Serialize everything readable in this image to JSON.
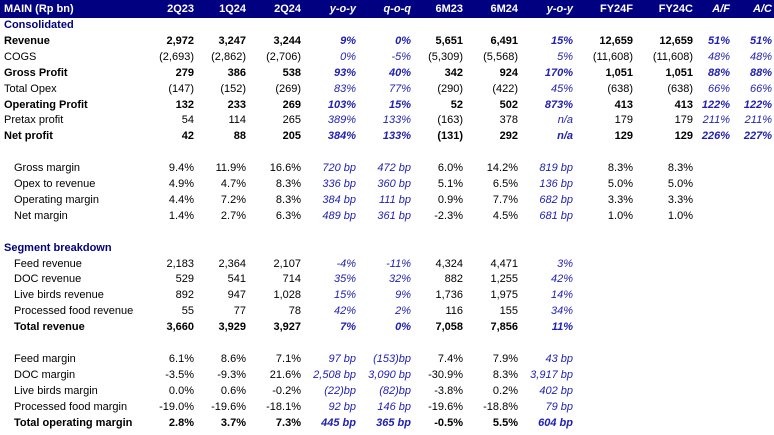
{
  "header": {
    "title": "MAIN (Rp bn)",
    "columns": [
      "2Q23",
      "1Q24",
      "2Q24",
      "y-o-y",
      "q-o-q",
      "6M23",
      "6M24",
      "y-o-y",
      "FY24F",
      "FY24C",
      "A/F",
      "A/C"
    ]
  },
  "consolidated": {
    "title": "Consolidated",
    "rows": [
      {
        "label": "Revenue",
        "bold": true,
        "values": [
          "2,972",
          "3,247",
          "3,244",
          "9%",
          "0%",
          "5,651",
          "6,491",
          "15%",
          "12,659",
          "12,659",
          "51%",
          "51%"
        ]
      },
      {
        "label": "COGS",
        "bold": false,
        "values": [
          "(2,693)",
          "(2,862)",
          "(2,706)",
          "0%",
          "-5%",
          "(5,309)",
          "(5,568)",
          "5%",
          "(11,608)",
          "(11,608)",
          "48%",
          "48%"
        ]
      },
      {
        "label": "Gross Profit",
        "bold": true,
        "values": [
          "279",
          "386",
          "538",
          "93%",
          "40%",
          "342",
          "924",
          "170%",
          "1,051",
          "1,051",
          "88%",
          "88%"
        ]
      },
      {
        "label": "Total Opex",
        "bold": false,
        "values": [
          "(147)",
          "(152)",
          "(269)",
          "83%",
          "77%",
          "(290)",
          "(422)",
          "45%",
          "(638)",
          "(638)",
          "66%",
          "66%"
        ]
      },
      {
        "label": "Operating Profit",
        "bold": true,
        "values": [
          "132",
          "233",
          "269",
          "103%",
          "15%",
          "52",
          "502",
          "873%",
          "413",
          "413",
          "122%",
          "122%"
        ]
      },
      {
        "label": "Pretax profit",
        "bold": false,
        "values": [
          "54",
          "114",
          "265",
          "389%",
          "133%",
          "(163)",
          "378",
          "n/a",
          "179",
          "179",
          "211%",
          "211%"
        ]
      },
      {
        "label": "Net profit",
        "bold": true,
        "values": [
          "42",
          "88",
          "205",
          "384%",
          "133%",
          "(131)",
          "292",
          "n/a",
          "129",
          "129",
          "226%",
          "227%"
        ]
      }
    ]
  },
  "margins": {
    "rows": [
      {
        "label": "Gross margin",
        "values": [
          "9.4%",
          "11.9%",
          "16.6%",
          "720 bp",
          "472 bp",
          "6.0%",
          "14.2%",
          "819 bp",
          "8.3%",
          "8.3%",
          "",
          ""
        ]
      },
      {
        "label": "Opex to revenue",
        "values": [
          "4.9%",
          "4.7%",
          "8.3%",
          "336 bp",
          "360 bp",
          "5.1%",
          "6.5%",
          "136 bp",
          "5.0%",
          "5.0%",
          "",
          ""
        ]
      },
      {
        "label": "Operating margin",
        "values": [
          "4.4%",
          "7.2%",
          "8.3%",
          "384 bp",
          "111 bp",
          "0.9%",
          "7.7%",
          "682 bp",
          "3.3%",
          "3.3%",
          "",
          ""
        ]
      },
      {
        "label": "Net margin",
        "values": [
          "1.4%",
          "2.7%",
          "6.3%",
          "489 bp",
          "361 bp",
          "-2.3%",
          "4.5%",
          "681 bp",
          "1.0%",
          "1.0%",
          "",
          ""
        ]
      }
    ]
  },
  "segment": {
    "title": "Segment breakdown",
    "rows": [
      {
        "label": "Feed revenue",
        "bold": false,
        "values": [
          "2,183",
          "2,364",
          "2,107",
          "-4%",
          "-11%",
          "4,324",
          "4,471",
          "3%",
          "",
          "",
          "",
          ""
        ]
      },
      {
        "label": "DOC revenue",
        "bold": false,
        "values": [
          "529",
          "541",
          "714",
          "35%",
          "32%",
          "882",
          "1,255",
          "42%",
          "",
          "",
          "",
          ""
        ]
      },
      {
        "label": "Live birds revenue",
        "bold": false,
        "values": [
          "892",
          "947",
          "1,028",
          "15%",
          "9%",
          "1,736",
          "1,975",
          "14%",
          "",
          "",
          "",
          ""
        ]
      },
      {
        "label": "Processed food revenue",
        "bold": false,
        "values": [
          "55",
          "77",
          "78",
          "42%",
          "2%",
          "116",
          "155",
          "34%",
          "",
          "",
          "",
          ""
        ]
      },
      {
        "label": "Total revenue",
        "bold": true,
        "values": [
          "3,660",
          "3,929",
          "3,927",
          "7%",
          "0%",
          "7,058",
          "7,856",
          "11%",
          "",
          "",
          "",
          ""
        ]
      }
    ]
  },
  "segment_margins": {
    "rows": [
      {
        "label": "Feed margin",
        "bold": false,
        "values": [
          "6.1%",
          "8.6%",
          "7.1%",
          "97 bp",
          "(153)bp",
          "7.4%",
          "7.9%",
          "43 bp",
          "",
          "",
          "",
          ""
        ]
      },
      {
        "label": "DOC margin",
        "bold": false,
        "values": [
          "-3.5%",
          "-9.3%",
          "21.6%",
          "2,508 bp",
          "3,090 bp",
          "-30.9%",
          "8.3%",
          "3,917 bp",
          "",
          "",
          "",
          ""
        ]
      },
      {
        "label": "Live birds margin",
        "bold": false,
        "values": [
          "0.0%",
          "0.6%",
          "-0.2%",
          "(22)bp",
          "(82)bp",
          "-3.8%",
          "0.2%",
          "402 bp",
          "",
          "",
          "",
          ""
        ]
      },
      {
        "label": "Processed food margin",
        "bold": false,
        "values": [
          "-19.0%",
          "-19.6%",
          "-18.1%",
          "92 bp",
          "146 bp",
          "-19.6%",
          "-18.8%",
          "79 bp",
          "",
          "",
          "",
          ""
        ]
      },
      {
        "label": "Total operating margin",
        "bold": true,
        "values": [
          "2.8%",
          "3.7%",
          "7.3%",
          "445 bp",
          "365 bp",
          "-0.5%",
          "5.5%",
          "604 bp",
          "",
          "",
          "",
          ""
        ]
      }
    ]
  }
}
